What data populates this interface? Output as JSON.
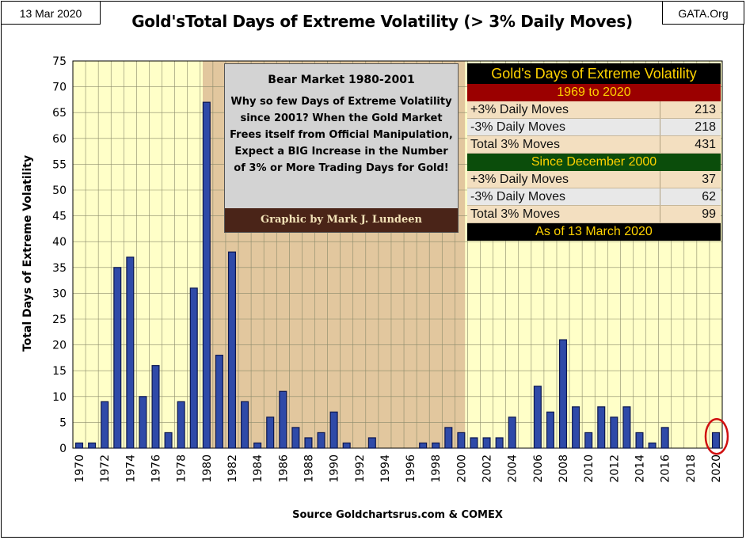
{
  "header": {
    "date": "13 Mar 2020",
    "site": "GATA.Org",
    "title": "Gold'sTotal Days of Extreme Volatility (> 3% Daily Moves)"
  },
  "footer": {
    "source": "Source Goldchartsrus.com & COMEX"
  },
  "note": {
    "title": "Bear Market  1980-2001",
    "body": "Why so few Days of Extreme Volatility since 2001?  When the Gold Market Frees itself from Official Manipulation, Expect a BIG Increase in the Number of 3% or More Trading Days for Gold!",
    "credit": "Graphic by Mark J. Lundeen"
  },
  "stats": {
    "title": "Gold's Days of Extreme Volatility",
    "section1": "1969 to 2020",
    "rows1": [
      {
        "label": "+3% Daily Moves",
        "value": "213"
      },
      {
        "label": "-3% Daily Moves",
        "value": "218"
      },
      {
        "label": "Total 3% Moves",
        "value": "431"
      }
    ],
    "section2": "Since December 2000",
    "rows2": [
      {
        "label": "+3% Daily Moves",
        "value": "37"
      },
      {
        "label": "-3% Daily Moves",
        "value": "62"
      },
      {
        "label": "Total 3% Moves",
        "value": "99"
      }
    ],
    "footer": "As of 13 March 2020"
  },
  "colors": {
    "plot_bg": "#ffffc8",
    "shade": "#e2c79e",
    "bar": "#2f4aa8",
    "bar_edge": "#0b1650",
    "highlight": "#d01010"
  },
  "chart_data": {
    "type": "bar",
    "title": "Gold'sTotal Days of Extreme Volatility (> 3% Daily Moves)",
    "ylabel": "Total Days of Extreme Volatility",
    "xlabel": "",
    "ylim": [
      0,
      75
    ],
    "yticks": [
      0,
      5,
      10,
      15,
      20,
      25,
      30,
      35,
      40,
      45,
      50,
      55,
      60,
      65,
      70,
      75
    ],
    "xtick_labels": [
      "1970",
      "1972",
      "1974",
      "1976",
      "1978",
      "1980",
      "1982",
      "1984",
      "1986",
      "1988",
      "1990",
      "1992",
      "1994",
      "1996",
      "1998",
      "2000",
      "2002",
      "2004",
      "2006",
      "2008",
      "2010",
      "2012",
      "2014",
      "2016",
      "2018",
      "2020"
    ],
    "categories": [
      1970,
      1971,
      1972,
      1973,
      1974,
      1975,
      1976,
      1977,
      1978,
      1979,
      1980,
      1981,
      1982,
      1983,
      1984,
      1985,
      1986,
      1987,
      1988,
      1989,
      1990,
      1991,
      1992,
      1993,
      1994,
      1995,
      1996,
      1997,
      1998,
      1999,
      2000,
      2001,
      2002,
      2003,
      2004,
      2005,
      2006,
      2007,
      2008,
      2009,
      2010,
      2011,
      2012,
      2013,
      2014,
      2015,
      2016,
      2017,
      2018,
      2019,
      2020
    ],
    "values": [
      1,
      1,
      9,
      35,
      37,
      10,
      16,
      3,
      9,
      31,
      67,
      18,
      38,
      9,
      1,
      6,
      11,
      4,
      2,
      3,
      7,
      1,
      0,
      2,
      0,
      0,
      0,
      1,
      1,
      4,
      3,
      2,
      2,
      2,
      6,
      0,
      12,
      7,
      21,
      8,
      3,
      8,
      6,
      8,
      3,
      1,
      4,
      0,
      0,
      0,
      3
    ],
    "shaded_region": [
      1980,
      2000
    ],
    "highlighted_category": 2020,
    "grid": true,
    "legend": "none"
  }
}
